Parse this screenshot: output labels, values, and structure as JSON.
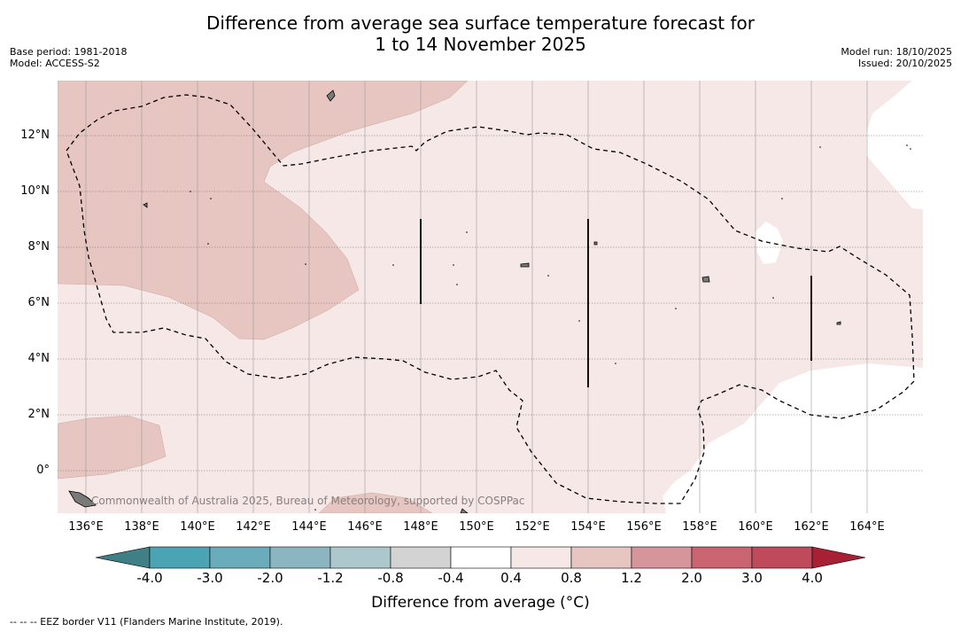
{
  "header": {
    "title_line1": "Difference from average sea surface temperature forecast for",
    "title_line2": "1 to 14 November 2025",
    "base_period": "Base period: 1981-2018",
    "model": "Model: ACCESS-S2",
    "model_run": "Model run: 18/10/2025",
    "issued": "Issued: 20/10/2025"
  },
  "map": {
    "region": "Western Pacific, 135°E–166°E, 1.5°S–14°N",
    "x_ticks": [
      "136°E",
      "138°E",
      "140°E",
      "142°E",
      "144°E",
      "146°E",
      "148°E",
      "150°E",
      "152°E",
      "154°E",
      "156°E",
      "158°E",
      "160°E",
      "162°E",
      "164°E"
    ],
    "y_ticks": [
      "12°N",
      "10°N",
      "8°N",
      "6°N",
      "4°N",
      "2°N",
      "0°"
    ],
    "watermark": "Commonwealth of Australia 2025, Bureau of Meteorology, supported by COSPPac",
    "colors": {
      "band_0_4_to_0_8": "#f5e8e6",
      "band_0_8_to_1_2": "#e7c5c0",
      "band_neg0_4_to_0_4": "#ffffff",
      "land": "#7a7a7a",
      "gridline": "#888888"
    }
  },
  "colorbar": {
    "title": "Difference from average (°C)",
    "labels": [
      "-4.0",
      "-3.0",
      "-2.0",
      "-1.2",
      "-0.8",
      "-0.4",
      "0.4",
      "0.8",
      "1.2",
      "2.0",
      "3.0",
      "4.0"
    ],
    "colors": [
      "#3f7f86",
      "#4ba4b4",
      "#6aacbb",
      "#8bb6c1",
      "#adc8cc",
      "#d3d3d3",
      "#ffffff",
      "#f5e8e6",
      "#e7c5c0",
      "#d6959a",
      "#c96470",
      "#be4a5c",
      "#a82034"
    ]
  },
  "footer": {
    "eez_note": "--  --  -- EEZ border V11 (Flanders Marine Institute, 2019)."
  }
}
